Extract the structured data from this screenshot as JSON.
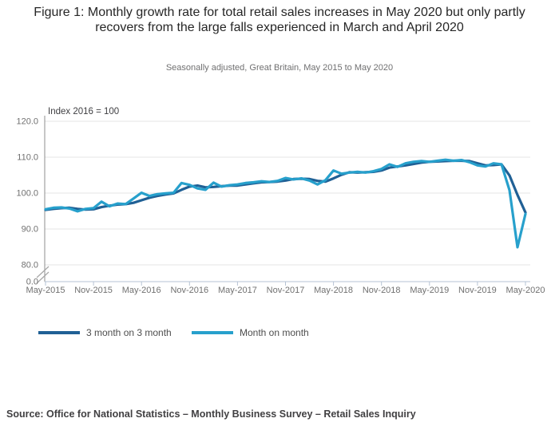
{
  "figure": {
    "title": "Figure 1: Monthly growth rate for total retail sales increases in May 2020 but only partly recovers from the large falls experienced in March and April 2020",
    "subtitle": "Seasonally adjusted, Great Britain, May 2015 to May 2020",
    "source": "Source: Office for National Statistics – Monthly Business Survey – Retail Sales Inquiry"
  },
  "colors": {
    "series_dark_blue": "#206095",
    "series_light_blue": "#27a0cc",
    "gridline": "#e4e4e4",
    "y_axis_line": "#8f8f8f",
    "x_axis_line": "#b6c3d4",
    "tick_label": "#707070",
    "break_mark": "#a6a6a6"
  },
  "chart_data": {
    "type": "line",
    "title": "Monthly growth rate for total retail sales, Great Britain",
    "axis_note": "Index 2016 = 100",
    "x_start": "May-2015",
    "x_end": "May-2020",
    "frequency": "monthly",
    "n_points": 61,
    "x_tick_labels": [
      "May-2015",
      "Nov-2015",
      "May-2016",
      "Nov-2016",
      "May-2017",
      "Nov-2017",
      "May-2018",
      "Nov-2018",
      "May-2019",
      "Nov-2019",
      "May-2020"
    ],
    "y_tick_labels": [
      "120.0",
      "110.0",
      "100.0",
      "90.0",
      "80.0",
      "0.0"
    ],
    "y_tick_values": [
      120,
      110,
      100,
      90,
      80,
      0
    ],
    "ylim_display": [
      80,
      120
    ],
    "y_axis_break": true,
    "grid": "horizontal",
    "legend_position": "bottom-left",
    "series": [
      {
        "name": "3 month on 3 month",
        "color": "#206095",
        "values": [
          95.3,
          95.6,
          95.8,
          95.9,
          95.6,
          95.4,
          95.5,
          96.1,
          96.5,
          96.8,
          96.9,
          97.3,
          98.0,
          98.7,
          99.2,
          99.6,
          99.9,
          100.9,
          101.8,
          102.1,
          101.6,
          101.7,
          101.9,
          102.1,
          102.1,
          102.4,
          102.7,
          103.0,
          103.1,
          103.2,
          103.5,
          103.9,
          104.0,
          103.9,
          103.4,
          103.2,
          104.1,
          105.1,
          105.8,
          105.7,
          105.8,
          105.9,
          106.3,
          107.1,
          107.4,
          107.7,
          108.1,
          108.5,
          108.7,
          108.8,
          108.9,
          109.0,
          109.0,
          108.9,
          108.3,
          107.7,
          107.8,
          108.0,
          104.9,
          99.5,
          94.6
        ]
      },
      {
        "name": "Month on month",
        "color": "#27a0cc",
        "values": [
          95.5,
          95.9,
          96.0,
          95.7,
          94.9,
          95.6,
          95.8,
          97.6,
          96.3,
          97.1,
          96.9,
          98.5,
          100.1,
          99.2,
          99.7,
          99.9,
          100.1,
          102.8,
          102.3,
          101.3,
          100.9,
          102.9,
          101.8,
          102.2,
          102.4,
          102.8,
          103.0,
          103.3,
          103.1,
          103.4,
          104.2,
          103.8,
          104.1,
          103.5,
          102.4,
          103.6,
          106.3,
          105.4,
          105.7,
          105.9,
          105.7,
          106.1,
          106.7,
          108.0,
          107.3,
          108.3,
          108.7,
          108.9,
          108.7,
          109.0,
          109.3,
          109.0,
          109.2,
          108.6,
          107.7,
          107.4,
          108.3,
          108.0,
          100.8,
          84.9,
          94.2
        ]
      }
    ]
  }
}
